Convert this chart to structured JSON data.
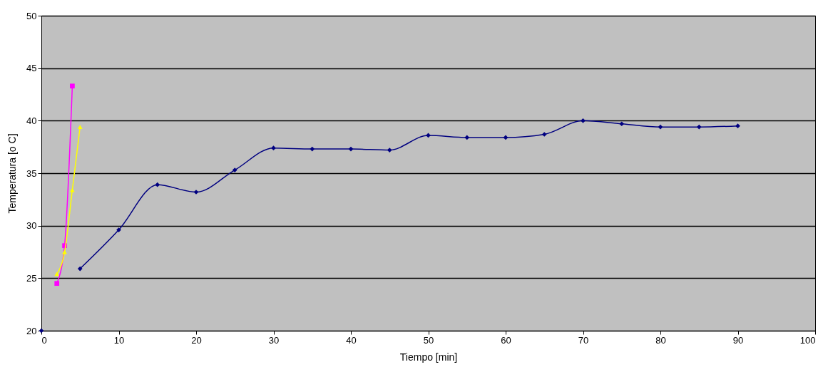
{
  "chart_data": {
    "type": "line",
    "xlabel": "Tiempo [min]",
    "ylabel": "Temperatura [o C]",
    "xlim": [
      0,
      100
    ],
    "xticks": [
      0,
      10,
      20,
      30,
      40,
      50,
      60,
      70,
      80,
      90,
      100
    ],
    "ylim": [
      20,
      50
    ],
    "yticks": [
      20,
      25,
      30,
      35,
      40,
      45,
      50
    ],
    "grid": "y",
    "series": [
      {
        "type": "scatter",
        "marker": "diamond",
        "color": "#000080",
        "x": [
          0
        ],
        "values": [
          20
        ]
      },
      {
        "color": "#000080",
        "marker": "diamond",
        "x": [
          5,
          10,
          15,
          20,
          25,
          30,
          35,
          40,
          45,
          50,
          55,
          60,
          65,
          70,
          75,
          80,
          85,
          90
        ],
        "values": [
          25.9,
          29.6,
          33.9,
          33.2,
          35.3,
          37.4,
          37.3,
          37.3,
          37.2,
          38.6,
          38.4,
          38.4,
          38.7,
          40.0,
          39.7,
          39.4,
          39.4,
          39.5
        ]
      },
      {
        "color": "#ff00ff",
        "marker": "square",
        "x": [
          2,
          3,
          4
        ],
        "values": [
          24.5,
          28.1,
          43.3
        ]
      },
      {
        "color": "#ffff00",
        "marker": "triangle",
        "x": [
          2,
          3,
          4,
          5
        ],
        "values": [
          25.4,
          27.5,
          33.4,
          39.4
        ]
      }
    ]
  }
}
